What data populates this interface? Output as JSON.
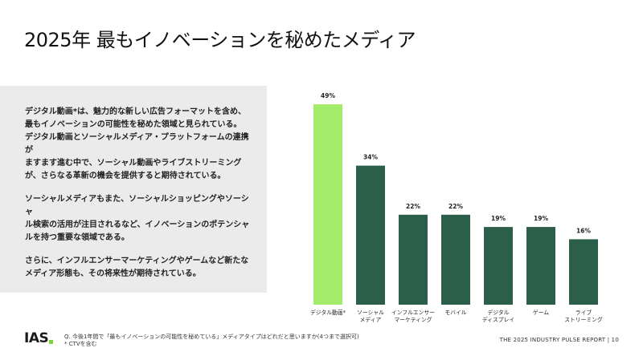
{
  "title": "2025年 最もイノベーションを秘めたメディア",
  "body": {
    "p1_lines": [
      "デジタル動画*は、魅力的な新しい広告フォーマットを含め、",
      "最もイノベーションの可能性を秘めた領域と見られている。",
      "デジタル動画とソーシャルメディア・プラットフォームの連携が",
      "ますます進む中で、ソーシャル動画やライブストリーミング",
      "が、さらなる革新の機会を提供すると期待されている。"
    ],
    "p2_lines": [
      "ソーシャルメディアもまた、ソーシャルショッピングやソーシャ",
      "ル検索の活用が注目されるなど、イノベーションのポテンシャ",
      "ルを持つ重要な領域である。"
    ],
    "p3_lines": [
      "さらに、インフルエンサーマーケティングやゲームなど新たな",
      "メディア形態も、その将来性が期待されている。"
    ]
  },
  "chart_data": {
    "type": "bar",
    "categories": [
      [
        "デジタル動画*"
      ],
      [
        "ソーシャル",
        "メディア"
      ],
      [
        "インフルエンサー",
        "マーケティング"
      ],
      [
        "モバイル"
      ],
      [
        "デジタル",
        "ディスプレイ"
      ],
      [
        "ゲーム"
      ],
      [
        "ライブ",
        "ストリーミング"
      ]
    ],
    "values": [
      49,
      34,
      22,
      22,
      19,
      19,
      16
    ],
    "value_labels": [
      "49%",
      "34%",
      "22%",
      "22%",
      "19%",
      "19%",
      "16%"
    ],
    "highlight_color": "#a3ec6a",
    "bar_color": "#2c5f4a",
    "ylim": [
      0,
      50
    ]
  },
  "footer": {
    "logo_text": "IAS",
    "note_lines": [
      "Q. 今後1年間で「最もイノベーションの可能性を秘めている」メディアタイプはどれだと思いますか(4つまで選択可)",
      "* CTVを含む"
    ],
    "report": "THE 2025 INDUSTRY PULSE REPORT  |  10"
  }
}
